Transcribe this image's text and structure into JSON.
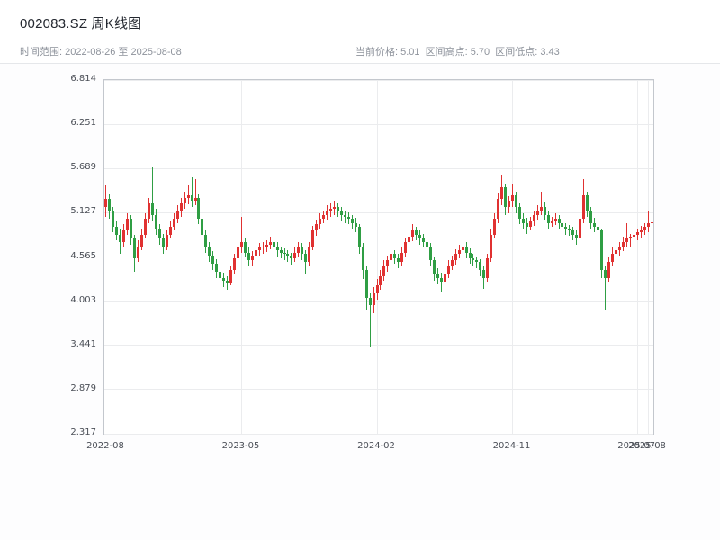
{
  "header": {
    "title": "002083.SZ 周K线图",
    "range_text": "时间范围: 2022-08-26 至 2025-08-08",
    "stats_text": "当前价格: 5.01  区间高点: 5.70  区间低点: 3.43",
    "stats": [
      {
        "label": "当前价格",
        "value": "5.01"
      },
      {
        "label": "区间高点",
        "value": "5.70"
      },
      {
        "label": "区间低点",
        "value": "3.43"
      }
    ]
  },
  "colors": {
    "up": "#e03131",
    "down": "#2f9e44",
    "grid": "#ebecee",
    "frame": "#c3c7cd",
    "title_text": "#23272f",
    "subtitle_text": "#8d929b",
    "tick_text": "#4b4f57"
  },
  "chart_data": {
    "type": "candlestick",
    "title": "002083.SZ 周K线图",
    "period": "weekly",
    "symbol": "002083.SZ",
    "x_range": [
      "2022-08-26",
      "2025-08-08"
    ],
    "current_price": 5.01,
    "range_high": 5.7,
    "range_low": 3.43,
    "ylim": [
      2.317,
      6.814
    ],
    "grid": true,
    "y_ticks": [
      "2.317",
      "2.879",
      "3.441",
      "4.003",
      "4.565",
      "5.127",
      "5.689",
      "6.251",
      "6.814"
    ],
    "x_ticks": [
      {
        "label": "2022-08",
        "index": 0
      },
      {
        "label": "2023-05",
        "index": 38
      },
      {
        "label": "2024-02",
        "index": 76
      },
      {
        "label": "2024-11",
        "index": 114
      },
      {
        "label": "2025-07",
        "index": 149
      },
      {
        "label": "2025-08",
        "index": 152
      }
    ],
    "candles": [
      [
        5.2,
        5.48,
        5.08,
        5.3
      ],
      [
        5.3,
        5.36,
        5.05,
        5.15
      ],
      [
        5.15,
        5.2,
        4.88,
        4.95
      ],
      [
        4.95,
        5.02,
        4.78,
        4.85
      ],
      [
        4.85,
        4.92,
        4.6,
        4.75
      ],
      [
        4.75,
        4.98,
        4.7,
        4.9
      ],
      [
        4.9,
        5.12,
        4.85,
        5.05
      ],
      [
        5.05,
        5.1,
        4.72,
        4.8
      ],
      [
        4.8,
        4.85,
        4.38,
        4.55
      ],
      [
        4.55,
        4.78,
        4.5,
        4.7
      ],
      [
        4.7,
        4.92,
        4.65,
        4.85
      ],
      [
        4.85,
        5.12,
        4.8,
        5.05
      ],
      [
        5.05,
        5.32,
        5.0,
        5.25
      ],
      [
        5.25,
        5.7,
        5.02,
        5.1
      ],
      [
        5.1,
        5.18,
        4.85,
        4.92
      ],
      [
        4.92,
        4.98,
        4.72,
        4.8
      ],
      [
        4.8,
        4.86,
        4.6,
        4.7
      ],
      [
        4.7,
        4.9,
        4.65,
        4.85
      ],
      [
        4.85,
        5.02,
        4.8,
        4.95
      ],
      [
        4.95,
        5.12,
        4.9,
        5.05
      ],
      [
        5.05,
        5.22,
        5.0,
        5.15
      ],
      [
        5.15,
        5.32,
        5.08,
        5.25
      ],
      [
        5.25,
        5.4,
        5.18,
        5.32
      ],
      [
        5.32,
        5.48,
        5.24,
        5.35
      ],
      [
        5.35,
        5.58,
        5.2,
        5.28
      ],
      [
        5.28,
        5.55,
        5.22,
        5.32
      ],
      [
        5.32,
        5.36,
        4.98,
        5.05
      ],
      [
        5.05,
        5.1,
        4.78,
        4.85
      ],
      [
        4.85,
        4.9,
        4.62,
        4.7
      ],
      [
        4.7,
        4.76,
        4.5,
        4.58
      ],
      [
        4.58,
        4.64,
        4.4,
        4.48
      ],
      [
        4.48,
        4.54,
        4.3,
        4.38
      ],
      [
        4.38,
        4.44,
        4.22,
        4.3
      ],
      [
        4.3,
        4.36,
        4.18,
        4.26
      ],
      [
        4.26,
        4.32,
        4.15,
        4.24
      ],
      [
        4.24,
        4.45,
        4.2,
        4.4
      ],
      [
        4.4,
        4.6,
        4.35,
        4.55
      ],
      [
        4.55,
        4.74,
        4.5,
        4.68
      ],
      [
        4.68,
        5.08,
        4.62,
        4.75
      ],
      [
        4.75,
        4.8,
        4.56,
        4.62
      ],
      [
        4.62,
        4.68,
        4.46,
        4.52
      ],
      [
        4.52,
        4.64,
        4.46,
        4.58
      ],
      [
        4.58,
        4.72,
        4.54,
        4.65
      ],
      [
        4.65,
        4.74,
        4.58,
        4.68
      ],
      [
        4.68,
        4.76,
        4.6,
        4.7
      ],
      [
        4.7,
        4.78,
        4.63,
        4.72
      ],
      [
        4.72,
        4.82,
        4.66,
        4.75
      ],
      [
        4.75,
        4.79,
        4.62,
        4.7
      ],
      [
        4.7,
        4.75,
        4.57,
        4.65
      ],
      [
        4.65,
        4.7,
        4.55,
        4.62
      ],
      [
        4.62,
        4.67,
        4.52,
        4.6
      ],
      [
        4.6,
        4.65,
        4.5,
        4.58
      ],
      [
        4.58,
        4.62,
        4.47,
        4.55
      ],
      [
        4.55,
        4.68,
        4.5,
        4.62
      ],
      [
        4.62,
        4.76,
        4.57,
        4.7
      ],
      [
        4.7,
        4.74,
        4.52,
        4.6
      ],
      [
        4.6,
        4.65,
        4.35,
        4.5
      ],
      [
        4.5,
        4.75,
        4.45,
        4.7
      ],
      [
        4.7,
        4.96,
        4.65,
        4.9
      ],
      [
        4.9,
        5.04,
        4.84,
        4.98
      ],
      [
        4.98,
        5.12,
        4.92,
        5.05
      ],
      [
        5.05,
        5.16,
        4.99,
        5.1
      ],
      [
        5.1,
        5.22,
        5.04,
        5.15
      ],
      [
        5.15,
        5.25,
        5.08,
        5.18
      ],
      [
        5.18,
        5.28,
        5.1,
        5.2
      ],
      [
        5.2,
        5.25,
        5.08,
        5.15
      ],
      [
        5.15,
        5.2,
        5.02,
        5.1
      ],
      [
        5.1,
        5.15,
        5.0,
        5.08
      ],
      [
        5.08,
        5.13,
        4.98,
        5.05
      ],
      [
        5.05,
        5.1,
        4.93,
        5.0
      ],
      [
        5.0,
        5.06,
        4.88,
        4.95
      ],
      [
        4.95,
        4.98,
        4.6,
        4.7
      ],
      [
        4.7,
        4.74,
        4.28,
        4.4
      ],
      [
        4.4,
        4.44,
        3.9,
        4.05
      ],
      [
        4.05,
        4.1,
        3.43,
        3.95
      ],
      [
        3.95,
        4.18,
        3.85,
        4.1
      ],
      [
        4.1,
        4.28,
        4.02,
        4.2
      ],
      [
        4.2,
        4.4,
        4.15,
        4.32
      ],
      [
        4.32,
        4.52,
        4.26,
        4.45
      ],
      [
        4.45,
        4.58,
        4.38,
        4.52
      ],
      [
        4.52,
        4.66,
        4.46,
        4.6
      ],
      [
        4.6,
        4.65,
        4.48,
        4.55
      ],
      [
        4.55,
        4.6,
        4.42,
        4.5
      ],
      [
        4.5,
        4.68,
        4.45,
        4.62
      ],
      [
        4.62,
        4.8,
        4.56,
        4.75
      ],
      [
        4.75,
        4.88,
        4.68,
        4.82
      ],
      [
        4.82,
        4.98,
        4.76,
        4.9
      ],
      [
        4.9,
        4.95,
        4.78,
        4.85
      ],
      [
        4.85,
        4.9,
        4.72,
        4.8
      ],
      [
        4.8,
        4.86,
        4.68,
        4.75
      ],
      [
        4.75,
        4.8,
        4.62,
        4.7
      ],
      [
        4.7,
        4.74,
        4.44,
        4.52
      ],
      [
        4.52,
        4.56,
        4.26,
        4.35
      ],
      [
        4.35,
        4.42,
        4.22,
        4.3
      ],
      [
        4.3,
        4.36,
        4.12,
        4.25
      ],
      [
        4.25,
        4.42,
        4.2,
        4.35
      ],
      [
        4.35,
        4.52,
        4.3,
        4.45
      ],
      [
        4.45,
        4.58,
        4.4,
        4.52
      ],
      [
        4.52,
        4.66,
        4.47,
        4.6
      ],
      [
        4.6,
        4.72,
        4.55,
        4.65
      ],
      [
        4.65,
        4.88,
        4.6,
        4.7
      ],
      [
        4.7,
        4.75,
        4.55,
        4.62
      ],
      [
        4.62,
        4.67,
        4.48,
        4.55
      ],
      [
        4.55,
        4.6,
        4.45,
        4.52
      ],
      [
        4.52,
        4.57,
        4.42,
        4.5
      ],
      [
        4.5,
        4.54,
        4.32,
        4.4
      ],
      [
        4.4,
        4.45,
        4.16,
        4.3
      ],
      [
        4.3,
        4.6,
        4.25,
        4.55
      ],
      [
        4.55,
        4.92,
        4.5,
        4.85
      ],
      [
        4.85,
        5.12,
        4.8,
        5.05
      ],
      [
        5.05,
        5.38,
        5.0,
        5.3
      ],
      [
        5.3,
        5.6,
        5.22,
        5.45
      ],
      [
        5.45,
        5.5,
        5.1,
        5.2
      ],
      [
        5.2,
        5.34,
        5.12,
        5.28
      ],
      [
        5.28,
        5.5,
        5.2,
        5.35
      ],
      [
        5.35,
        5.4,
        5.12,
        5.2
      ],
      [
        5.2,
        5.25,
        4.98,
        5.05
      ],
      [
        5.05,
        5.12,
        4.92,
        5.0
      ],
      [
        5.0,
        5.06,
        4.86,
        4.95
      ],
      [
        4.95,
        5.08,
        4.9,
        5.02
      ],
      [
        5.02,
        5.16,
        4.96,
        5.1
      ],
      [
        5.1,
        5.22,
        5.04,
        5.15
      ],
      [
        5.15,
        5.4,
        5.1,
        5.2
      ],
      [
        5.2,
        5.26,
        5.03,
        5.1
      ],
      [
        5.1,
        5.15,
        4.92,
        5.0
      ],
      [
        5.0,
        5.08,
        4.95,
        5.02
      ],
      [
        5.02,
        5.12,
        4.97,
        5.05
      ],
      [
        5.05,
        5.1,
        4.93,
        5.0
      ],
      [
        5.0,
        5.05,
        4.88,
        4.95
      ],
      [
        4.95,
        5.0,
        4.85,
        4.92
      ],
      [
        4.92,
        4.97,
        4.83,
        4.9
      ],
      [
        4.9,
        4.95,
        4.78,
        4.85
      ],
      [
        4.85,
        4.9,
        4.72,
        4.8
      ],
      [
        4.8,
        5.12,
        4.75,
        5.05
      ],
      [
        5.05,
        5.55,
        5.0,
        5.35
      ],
      [
        5.35,
        5.4,
        5.08,
        5.15
      ],
      [
        5.15,
        5.2,
        4.93,
        5.0
      ],
      [
        5.0,
        5.06,
        4.88,
        4.95
      ],
      [
        4.95,
        5.0,
        4.82,
        4.9
      ],
      [
        4.9,
        4.93,
        4.3,
        4.4
      ],
      [
        4.4,
        4.45,
        3.9,
        4.3
      ],
      [
        4.3,
        4.56,
        4.25,
        4.5
      ],
      [
        4.5,
        4.68,
        4.45,
        4.6
      ],
      [
        4.6,
        4.72,
        4.54,
        4.65
      ],
      [
        4.65,
        4.76,
        4.58,
        4.7
      ],
      [
        4.7,
        4.82,
        4.64,
        4.75
      ],
      [
        4.75,
        5.0,
        4.7,
        4.8
      ],
      [
        4.8,
        4.86,
        4.7,
        4.82
      ],
      [
        4.82,
        4.9,
        4.74,
        4.85
      ],
      [
        4.85,
        4.93,
        4.78,
        4.88
      ],
      [
        4.88,
        4.96,
        4.8,
        4.9
      ],
      [
        4.9,
        5.0,
        4.84,
        4.95
      ],
      [
        4.95,
        5.15,
        4.88,
        5.0
      ],
      [
        5.0,
        5.1,
        4.92,
        5.01
      ]
    ]
  }
}
